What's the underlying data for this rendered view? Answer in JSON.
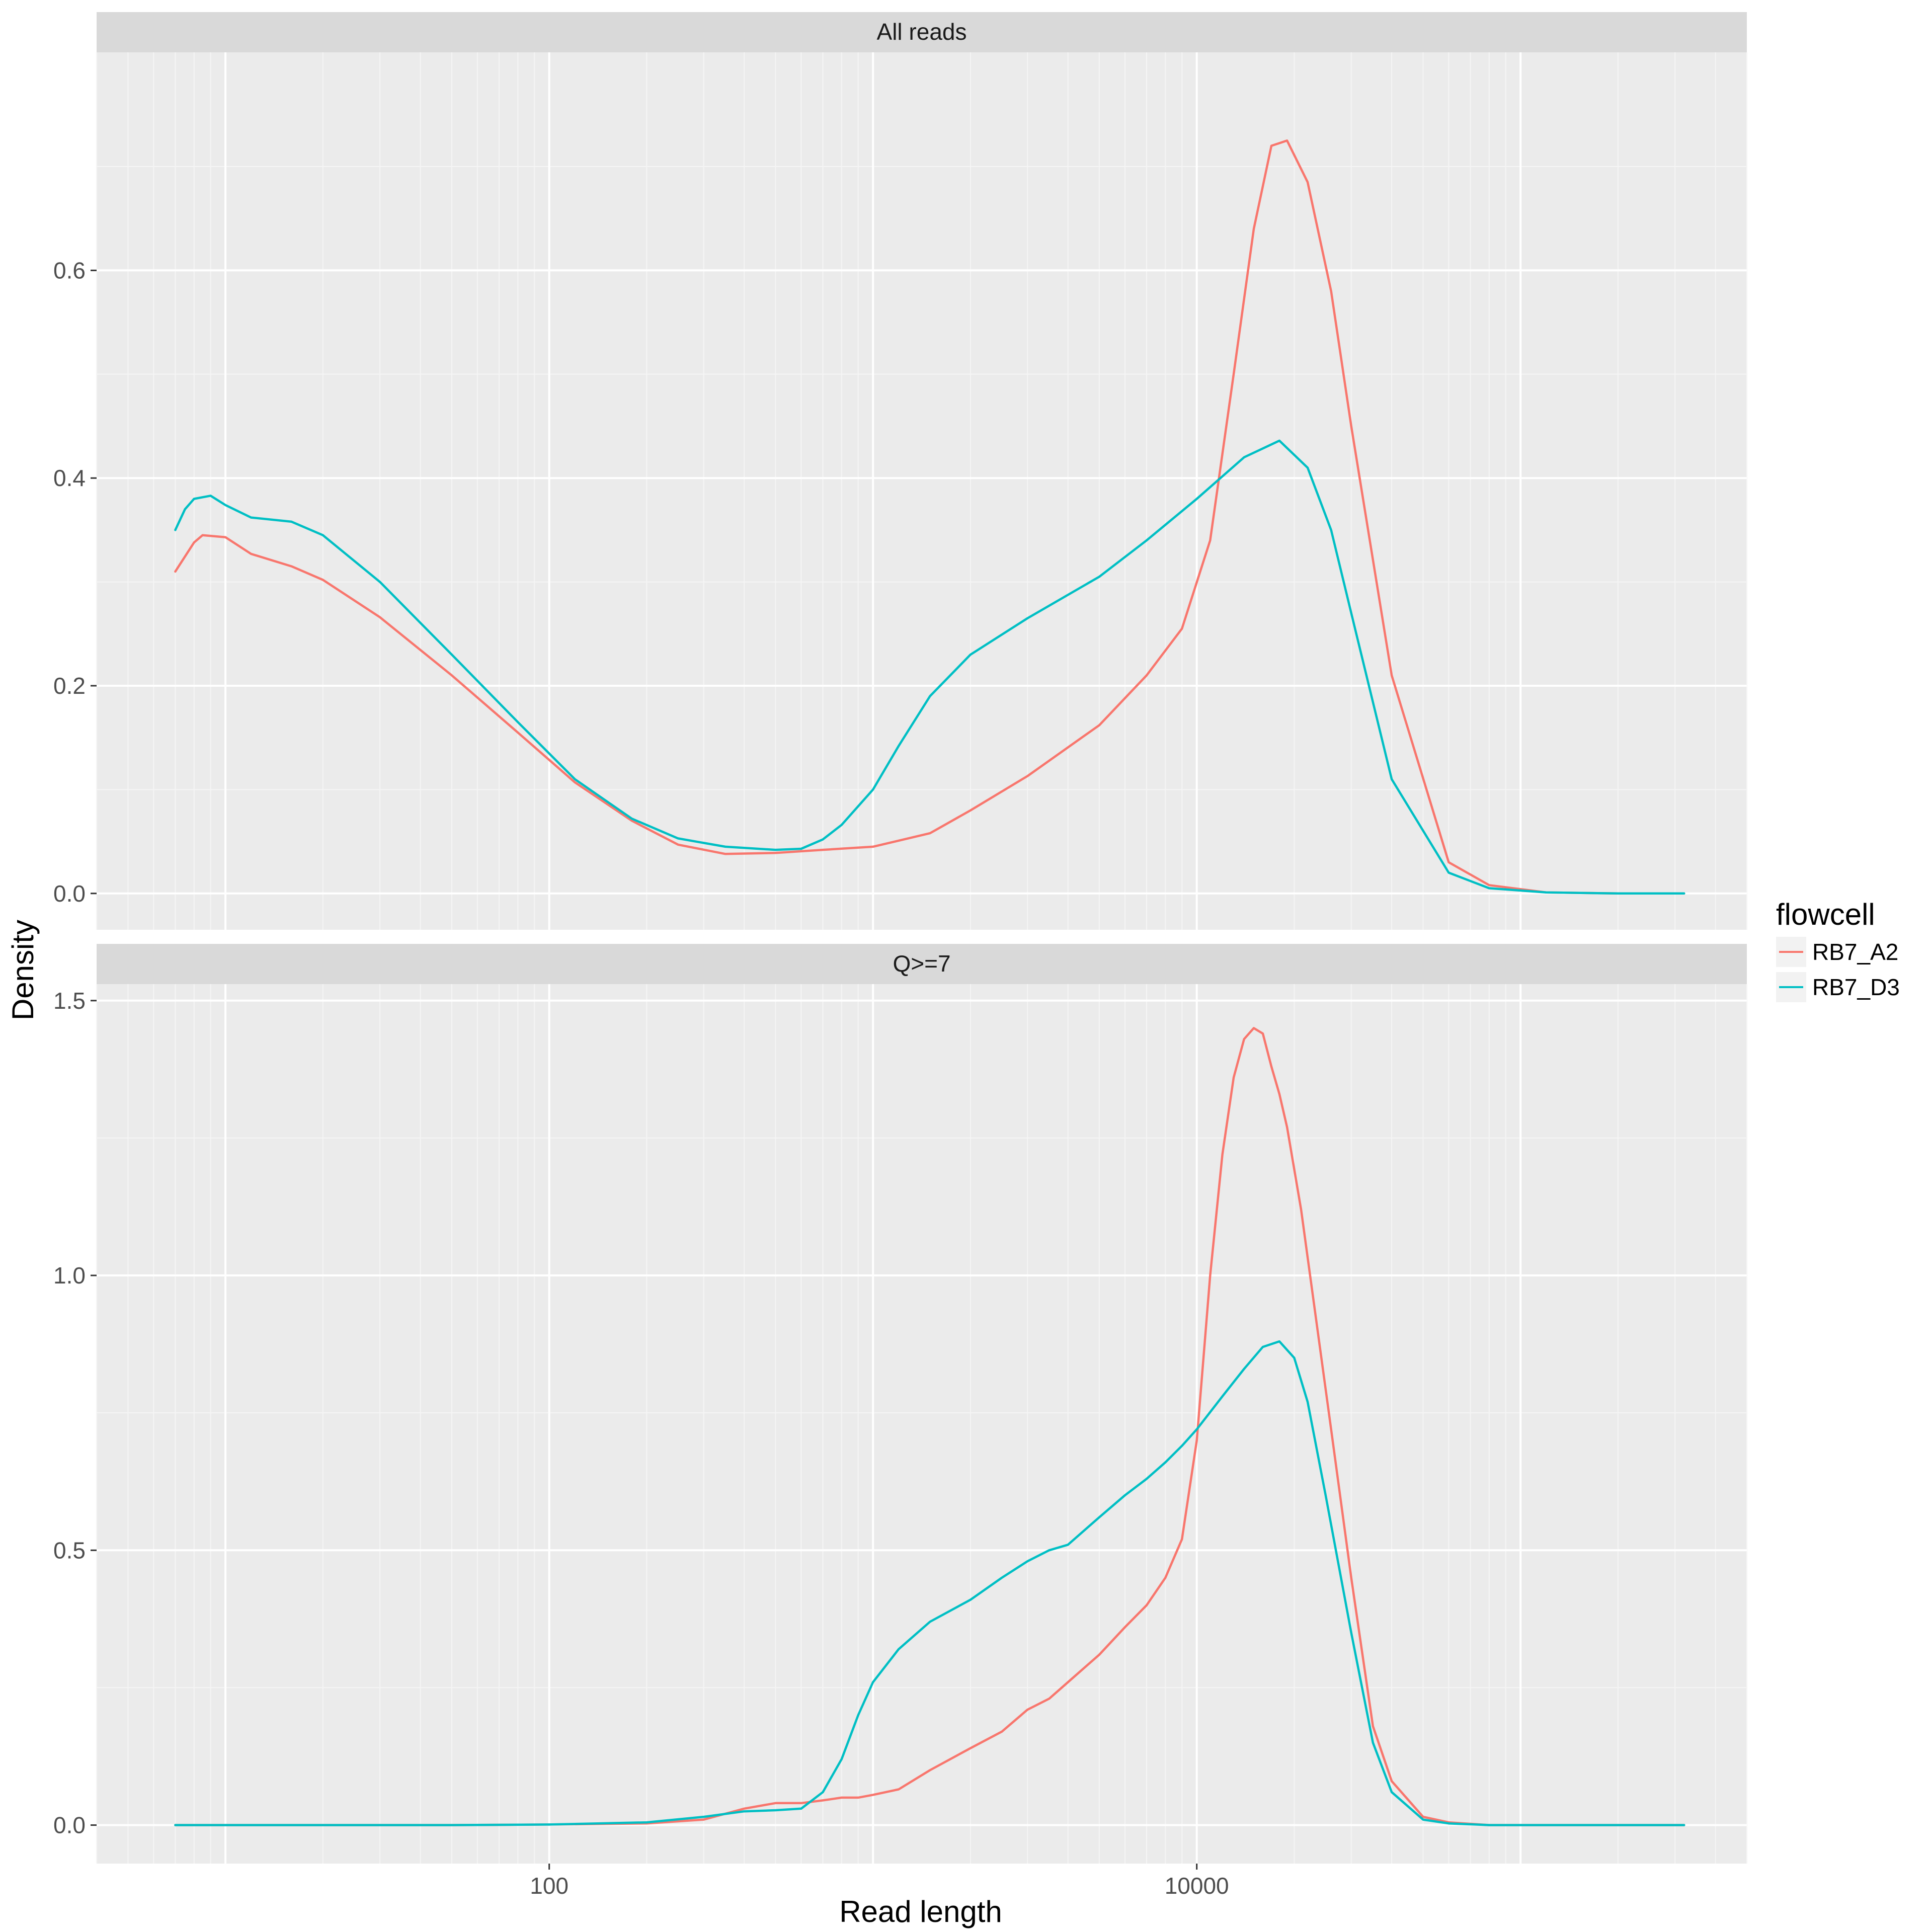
{
  "chart_data": {
    "type": "line",
    "subtype": "density",
    "x_scale": "log10",
    "xlabel": "Read length",
    "ylabel": "Density",
    "x_range": [
      4,
      500000
    ],
    "x_ticks": [
      100,
      10000
    ],
    "x_tick_labels": [
      "100",
      "10000"
    ],
    "grid": true,
    "legend": {
      "title": "flowcell",
      "position": "right",
      "entries": [
        "RB7_A2",
        "RB7_D3"
      ]
    },
    "colors": {
      "RB7_A2": "#F8766D",
      "RB7_D3": "#00BFC4"
    },
    "panels": [
      {
        "title": "All reads",
        "ylim": [
          -0.035,
          0.81
        ],
        "y_ticks": [
          0.0,
          0.2,
          0.4,
          0.6
        ],
        "y_tick_labels": [
          "0.0",
          "0.2",
          "0.4",
          "0.6"
        ],
        "series": [
          {
            "name": "RB7_A2",
            "x": [
              7,
              8,
              8.5,
              10,
              12,
              16,
              20,
              30,
              50,
              80,
              120,
              180,
              250,
              350,
              500,
              700,
              1000,
              1500,
              2000,
              3000,
              5000,
              7000,
              9000,
              11000,
              13000,
              15000,
              17000,
              19000,
              22000,
              26000,
              30000,
              40000,
              60000,
              80000,
              120000,
              200000,
              320000
            ],
            "y": [
              0.31,
              0.338,
              0.345,
              0.343,
              0.327,
              0.315,
              0.302,
              0.266,
              0.21,
              0.155,
              0.107,
              0.07,
              0.047,
              0.038,
              0.039,
              0.042,
              0.045,
              0.058,
              0.08,
              0.113,
              0.162,
              0.21,
              0.255,
              0.34,
              0.5,
              0.64,
              0.72,
              0.725,
              0.685,
              0.58,
              0.45,
              0.21,
              0.03,
              0.008,
              0.001,
              0.0,
              0.0
            ]
          },
          {
            "name": "RB7_D3",
            "x": [
              7,
              7.5,
              8,
              9,
              10,
              12,
              16,
              20,
              30,
              50,
              80,
              120,
              180,
              250,
              350,
              500,
              600,
              700,
              800,
              1000,
              1200,
              1500,
              2000,
              3000,
              5000,
              7000,
              10000,
              14000,
              18000,
              22000,
              26000,
              30000,
              40000,
              60000,
              80000,
              120000,
              200000,
              320000
            ],
            "y": [
              0.35,
              0.37,
              0.38,
              0.383,
              0.374,
              0.362,
              0.358,
              0.345,
              0.3,
              0.23,
              0.165,
              0.11,
              0.072,
              0.053,
              0.045,
              0.042,
              0.043,
              0.052,
              0.066,
              0.1,
              0.142,
              0.19,
              0.23,
              0.265,
              0.305,
              0.34,
              0.38,
              0.42,
              0.436,
              0.41,
              0.35,
              0.27,
              0.11,
              0.02,
              0.005,
              0.001,
              0.0,
              0.0
            ]
          }
        ]
      },
      {
        "title": "Q>=7",
        "ylim": [
          -0.07,
          1.53
        ],
        "y_ticks": [
          0.0,
          0.5,
          1.0,
          1.5
        ],
        "y_tick_labels": [
          "0.0",
          "0.5",
          "1.0",
          "1.5"
        ],
        "series": [
          {
            "name": "RB7_A2",
            "x": [
              7,
              20,
              50,
              100,
              200,
              300,
              400,
              500,
              600,
              700,
              800,
              900,
              1000,
              1200,
              1500,
              2000,
              2500,
              3000,
              3500,
              4000,
              5000,
              6000,
              7000,
              8000,
              9000,
              10000,
              11000,
              12000,
              13000,
              14000,
              15000,
              16000,
              17000,
              18000,
              19000,
              21000,
              23000,
              26000,
              30000,
              35000,
              40000,
              50000,
              60000,
              80000,
              120000,
              200000,
              320000
            ],
            "y": [
              0.0,
              0.0,
              0.0,
              0.001,
              0.003,
              0.01,
              0.03,
              0.04,
              0.04,
              0.045,
              0.05,
              0.05,
              0.055,
              0.065,
              0.1,
              0.14,
              0.17,
              0.21,
              0.23,
              0.26,
              0.31,
              0.36,
              0.4,
              0.45,
              0.52,
              0.7,
              1.0,
              1.22,
              1.36,
              1.43,
              1.45,
              1.44,
              1.38,
              1.33,
              1.27,
              1.12,
              0.95,
              0.72,
              0.45,
              0.18,
              0.08,
              0.015,
              0.005,
              0.0,
              0.0,
              0.0,
              0.0
            ]
          },
          {
            "name": "RB7_D3",
            "x": [
              7,
              20,
              50,
              100,
              200,
              300,
              400,
              500,
              600,
              700,
              800,
              900,
              1000,
              1200,
              1500,
              2000,
              2500,
              3000,
              3500,
              4000,
              5000,
              6000,
              7000,
              8000,
              9000,
              10000,
              12000,
              14000,
              16000,
              18000,
              20000,
              22000,
              25000,
              30000,
              35000,
              40000,
              50000,
              60000,
              80000,
              120000,
              200000,
              320000
            ],
            "y": [
              0.0,
              0.0,
              0.0,
              0.001,
              0.005,
              0.015,
              0.025,
              0.027,
              0.03,
              0.06,
              0.12,
              0.2,
              0.26,
              0.32,
              0.37,
              0.41,
              0.45,
              0.48,
              0.5,
              0.51,
              0.56,
              0.6,
              0.63,
              0.66,
              0.69,
              0.72,
              0.78,
              0.83,
              0.87,
              0.88,
              0.85,
              0.77,
              0.6,
              0.35,
              0.15,
              0.06,
              0.01,
              0.003,
              0.0,
              0.0,
              0.0,
              0.0
            ]
          }
        ]
      }
    ]
  }
}
